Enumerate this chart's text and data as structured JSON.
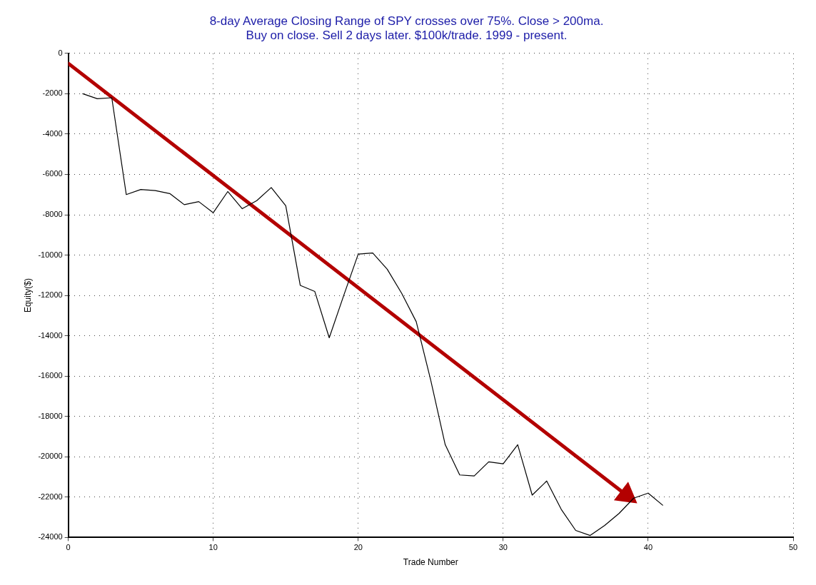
{
  "chart_data": {
    "type": "line",
    "title": "8-day Average Closing Range of SPY crosses over 75%. Close > 200ma.\nBuy on close. Sell 2 days later. $100k/trade. 1999 - present.",
    "xlabel": "Trade Number",
    "ylabel": "Equity($)",
    "x": [
      1,
      2,
      3,
      4,
      5,
      6,
      7,
      8,
      9,
      10,
      11,
      12,
      13,
      14,
      15,
      16,
      17,
      18,
      19,
      20,
      21,
      22,
      23,
      24,
      25,
      26,
      27,
      28,
      29,
      30,
      31,
      32,
      33,
      34,
      35,
      36,
      37,
      38,
      39,
      40,
      41
    ],
    "series": [
      {
        "color": "#000000",
        "values": [
          -2000,
          -2250,
          -2200,
          -7000,
          -6750,
          -6800,
          -6950,
          -7500,
          -7350,
          -7900,
          -6850,
          -7700,
          -7300,
          -6650,
          -7550,
          -11500,
          -11800,
          -14100,
          -12000,
          -9950,
          -9900,
          -10700,
          -11900,
          -13300,
          -16200,
          -19400,
          -20900,
          -20950,
          -20250,
          -20350,
          -19400,
          -21900,
          -21200,
          -22600,
          -23650,
          -23900,
          -23400,
          -22800,
          -22050,
          -21800,
          -22400
        ]
      },
      {
        "type": "line",
        "color": "#b30000",
        "marker": "triangle",
        "x": [
          0,
          38.5
        ],
        "values": [
          -500,
          -21900
        ]
      }
    ],
    "xlim": [
      0,
      50
    ],
    "xticks": [
      0,
      10,
      20,
      30,
      40,
      50
    ],
    "ylim": [
      -24000,
      0
    ],
    "yticks": [
      -24000,
      -22000,
      -20000,
      -18000,
      -16000,
      -14000,
      -12000,
      -10000,
      -8000,
      -6000,
      -4000,
      -2000,
      0
    ],
    "grid": true,
    "marker": "none",
    "line_style": "solid"
  }
}
